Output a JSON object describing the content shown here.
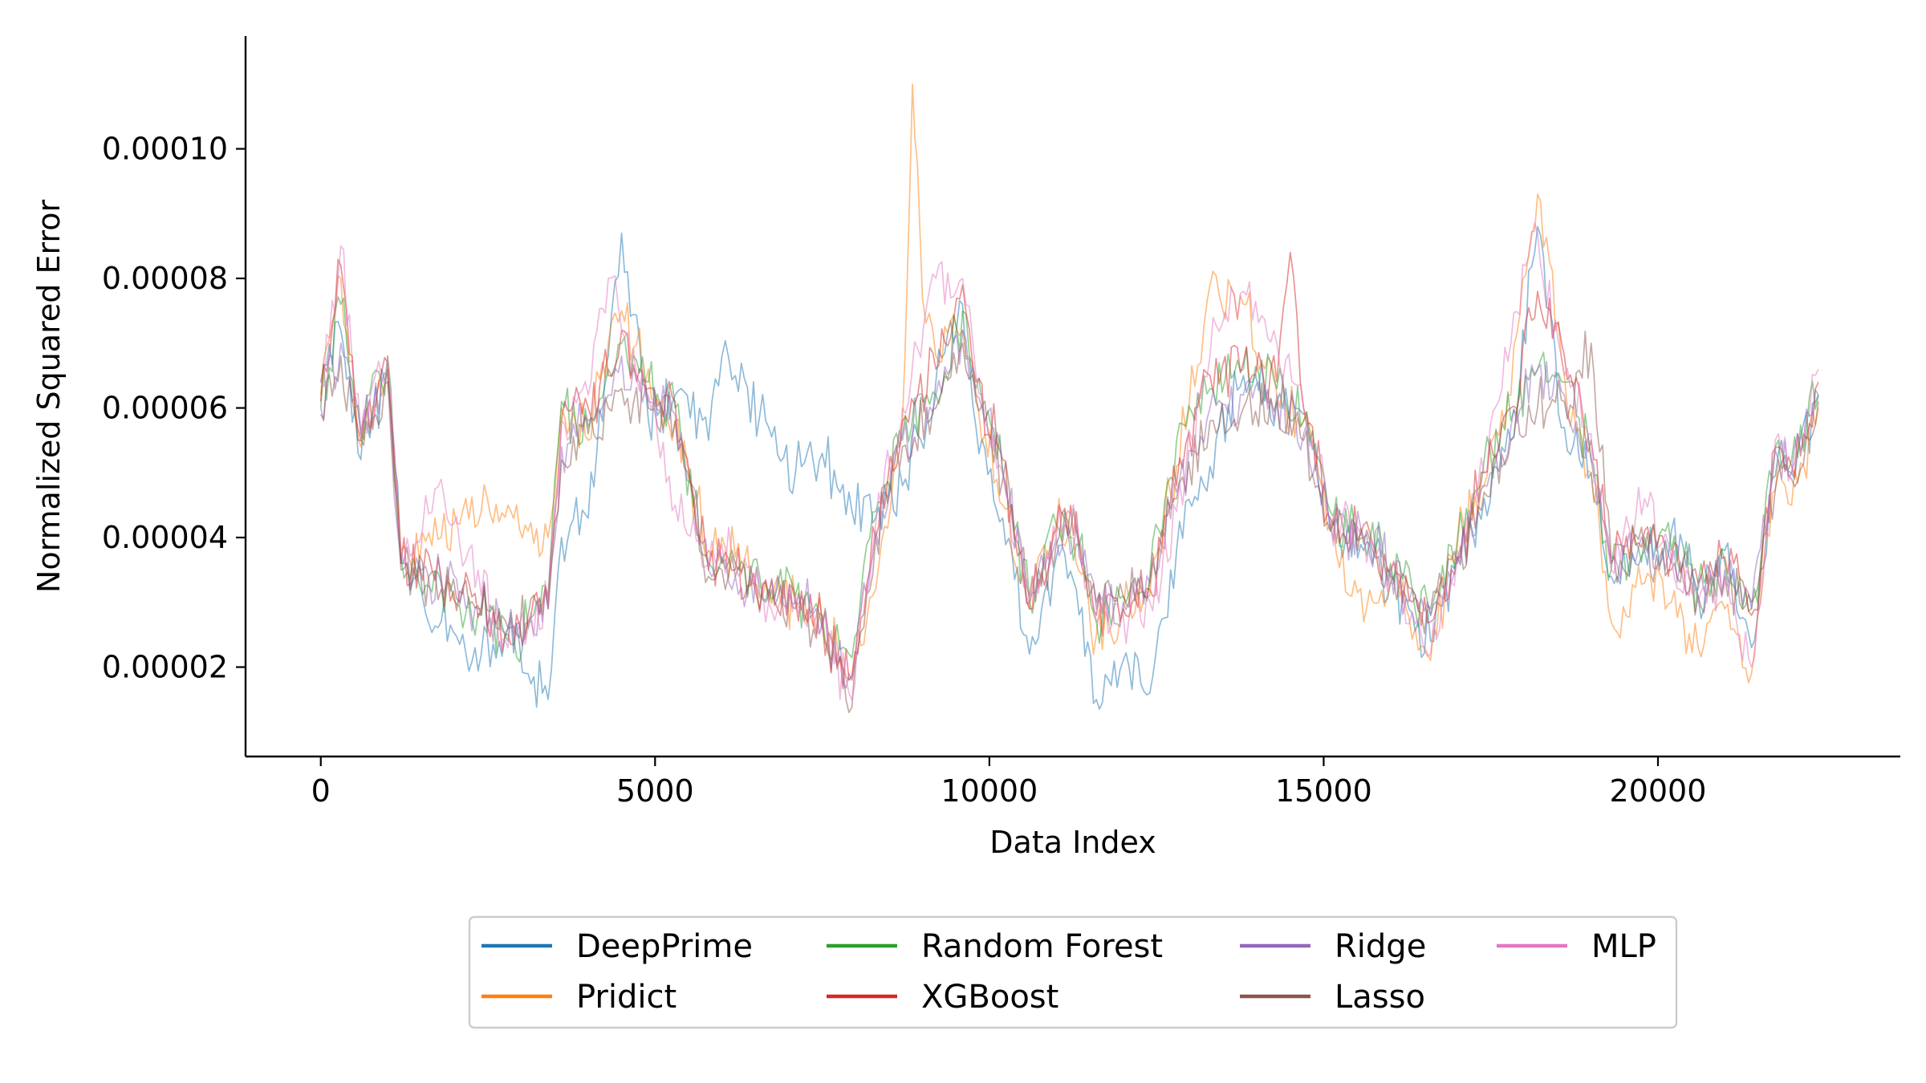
{
  "chart_data": {
    "type": "line",
    "title": "",
    "xlabel": "Data Index",
    "ylabel": "Normalized Squared Error",
    "xlim": [
      -1125,
      23625
    ],
    "ylim": [
      6.2e-06,
      0.0001174
    ],
    "xticks": [
      0,
      5000,
      10000,
      15000,
      20000
    ],
    "xtick_labels": [
      "0",
      "5000",
      "10000",
      "15000",
      "20000"
    ],
    "yticks": [
      2e-05,
      4e-05,
      6e-05,
      8e-05,
      0.0001
    ],
    "ytick_labels": [
      "0.00002",
      "0.00004",
      "0.00006",
      "0.00008",
      "0.00010"
    ],
    "grid": false,
    "legend_position": "bottom-center, below axes",
    "legend_columns": 4,
    "series_opacity": 0.5,
    "series": [
      {
        "name": "DeepPrime",
        "color": "#1f77b4",
        "x": [
          0,
          300,
          600,
          1000,
          1200,
          1800,
          2400,
          2800,
          3100,
          3400,
          3600,
          4000,
          4300,
          4500,
          4900,
          5300,
          5800,
          6000,
          6200,
          6700,
          7100,
          7500,
          7900,
          8300,
          8700,
          9200,
          9600,
          9800,
          10200,
          10600,
          11000,
          11300,
          11600,
          12000,
          12400,
          12800,
          13300,
          13800,
          14300,
          14700,
          15100,
          15600,
          16000,
          16600,
          17000,
          17400,
          17800,
          18200,
          18600,
          19000,
          19300,
          19800,
          20200,
          20600,
          21000,
          21400,
          21800,
          22000,
          22400
        ],
        "y": [
          6.4e-05,
          7.2e-05,
          5.2e-05,
          6.6e-05,
          3.6e-05,
          2.7e-05,
          2.2e-05,
          2.6e-05,
          1.9e-05,
          1.5e-05,
          4e-05,
          4.3e-05,
          6.8e-05,
          8.7e-05,
          5.8e-05,
          6.2e-05,
          5.5e-05,
          6.8e-05,
          6.5e-05,
          5.7e-05,
          5e-05,
          5.3e-05,
          4.7e-05,
          4.3e-05,
          4.8e-05,
          6.4e-05,
          7.6e-05,
          5.7e-05,
          4.3e-05,
          2.2e-05,
          3.7e-05,
          3.2e-05,
          1.5e-05,
          2.1e-05,
          1.6e-05,
          3.8e-05,
          5.1e-05,
          6.5e-05,
          6.1e-05,
          5.9e-05,
          4.1e-05,
          3.8e-05,
          3.3e-05,
          2.4e-05,
          3.7e-05,
          4.6e-05,
          5.5e-05,
          8.8e-05,
          5.7e-05,
          5e-05,
          3.4e-05,
          3.8e-05,
          4.1e-05,
          3.1e-05,
          3.8e-05,
          2.3e-05,
          5.3e-05,
          5e-05,
          6.2e-05
        ]
      },
      {
        "name": "Pridict",
        "color": "#ff7f0e",
        "x": [
          0,
          300,
          600,
          1000,
          1200,
          1800,
          2400,
          2800,
          3100,
          3400,
          3600,
          4000,
          4300,
          4500,
          4900,
          5300,
          5800,
          6000,
          6200,
          6700,
          7100,
          7500,
          7900,
          8300,
          8700,
          8850,
          9000,
          9200,
          9600,
          9800,
          10200,
          10600,
          11000,
          11300,
          11600,
          12000,
          12400,
          12800,
          13300,
          13800,
          14300,
          14700,
          15100,
          15600,
          16000,
          16600,
          17000,
          17400,
          17800,
          18200,
          18600,
          19000,
          19300,
          19800,
          20200,
          20600,
          21000,
          21400,
          21800,
          22000,
          22400
        ],
        "y": [
          6.2e-05,
          8e-05,
          5.4e-05,
          6.6e-05,
          3.8e-05,
          4e-05,
          4.4e-05,
          4.5e-05,
          4.1e-05,
          4e-05,
          6e-05,
          5.5e-05,
          7e-05,
          7.5e-05,
          6.6e-05,
          5.8e-05,
          3.8e-05,
          4e-05,
          3.7e-05,
          3.1e-05,
          3e-05,
          2.7e-05,
          1.8e-05,
          3.2e-05,
          5.8e-05,
          0.00011,
          7.7e-05,
          6.8e-05,
          7.2e-05,
          6.2e-05,
          4.5e-05,
          2.9e-05,
          4.2e-05,
          3.6e-05,
          2.5e-05,
          2.8e-05,
          3.1e-05,
          5.1e-05,
          7.9e-05,
          7.6e-05,
          6.2e-05,
          5.8e-05,
          4.2e-05,
          2.7e-05,
          3.3e-05,
          2.1e-05,
          4e-05,
          4.8e-05,
          6.2e-05,
          9.3e-05,
          6.5e-05,
          5e-05,
          2.7e-05,
          3.3e-05,
          3e-05,
          2.3e-05,
          2.9e-05,
          1.9e-05,
          5.2e-05,
          4.5e-05,
          6e-05
        ]
      },
      {
        "name": "Random Forest",
        "color": "#2ca02c",
        "x": [
          0,
          300,
          600,
          1000,
          1200,
          1800,
          2400,
          2800,
          3100,
          3400,
          3600,
          4000,
          4300,
          4500,
          4900,
          5300,
          5800,
          6000,
          6200,
          6700,
          7100,
          7500,
          7900,
          8300,
          8700,
          9200,
          9600,
          9800,
          10200,
          10600,
          11000,
          11300,
          11600,
          12000,
          12400,
          12800,
          13300,
          13800,
          14300,
          14700,
          15100,
          15600,
          16000,
          16600,
          17000,
          17400,
          17800,
          18200,
          18600,
          19000,
          19300,
          19800,
          20200,
          20600,
          21000,
          21400,
          21800,
          22000,
          22400
        ],
        "y": [
          6e-05,
          7.6e-05,
          5.6e-05,
          6.8e-05,
          3.7e-05,
          3.3e-05,
          2.8e-05,
          2.4e-05,
          2.6e-05,
          3.1e-05,
          6.1e-05,
          5.7e-05,
          6.6e-05,
          7e-05,
          6.4e-05,
          6e-05,
          3.6e-05,
          3.7e-05,
          3.6e-05,
          3.2e-05,
          3.1e-05,
          2.8e-05,
          2.2e-05,
          4.4e-05,
          5.6e-05,
          6.2e-05,
          7.5e-05,
          6.3e-05,
          5e-05,
          3e-05,
          4.2e-05,
          3.9e-05,
          2.7e-05,
          3.1e-05,
          3.4e-05,
          5.5e-05,
          6.3e-05,
          6.6e-05,
          6.3e-05,
          5.8e-05,
          4.4e-05,
          4e-05,
          3.6e-05,
          2.8e-05,
          3.9e-05,
          5.2e-05,
          5.8e-05,
          6.6e-05,
          6.4e-05,
          5.2e-05,
          3.5e-05,
          4e-05,
          3.8e-05,
          3.3e-05,
          3.6e-05,
          2.9e-05,
          5.5e-05,
          5.2e-05,
          6.2e-05
        ]
      },
      {
        "name": "XGBoost",
        "color": "#d62728",
        "x": [
          0,
          300,
          600,
          1000,
          1200,
          1800,
          2400,
          2800,
          3100,
          3400,
          3600,
          4000,
          4300,
          4500,
          4900,
          5300,
          5800,
          6000,
          6200,
          6700,
          7100,
          7500,
          7900,
          8300,
          8700,
          9200,
          9600,
          9800,
          10200,
          10600,
          11000,
          11300,
          11600,
          12000,
          12400,
          12800,
          13300,
          13800,
          14300,
          14500,
          14700,
          15100,
          15600,
          16000,
          16600,
          17000,
          17400,
          17800,
          18200,
          18600,
          19000,
          19300,
          19800,
          20200,
          20600,
          21000,
          21400,
          21800,
          22000,
          22400
        ],
        "y": [
          6.1e-05,
          8.2e-05,
          5.5e-05,
          6.7e-05,
          3.6e-05,
          3.4e-05,
          2.9e-05,
          2.5e-05,
          2.7e-05,
          3e-05,
          5.8e-05,
          6e-05,
          6.5e-05,
          7.2e-05,
          6.3e-05,
          6.1e-05,
          3.5e-05,
          3.6e-05,
          3.5e-05,
          3.1e-05,
          3e-05,
          2.7e-05,
          1.8e-05,
          4e-05,
          5.8e-05,
          6.6e-05,
          7.9e-05,
          6.4e-05,
          5.2e-05,
          2.9e-05,
          4.1e-05,
          4.4e-05,
          2.8e-05,
          2.9e-05,
          3.2e-05,
          4.8e-05,
          6.5e-05,
          6.7e-05,
          6.4e-05,
          8.4e-05,
          6e-05,
          4.3e-05,
          4.2e-05,
          3.5e-05,
          2.7e-05,
          3.7e-05,
          5e-05,
          6e-05,
          7.8e-05,
          6.8e-05,
          5.5e-05,
          3.6e-05,
          4.1e-05,
          3.7e-05,
          3.3e-05,
          3.7e-05,
          2.8e-05,
          5.4e-05,
          5.1e-05,
          6.4e-05
        ]
      },
      {
        "name": "Ridge",
        "color": "#9467bd",
        "x": [
          0,
          300,
          600,
          1000,
          1200,
          1800,
          2400,
          2800,
          3100,
          3400,
          3600,
          4000,
          4300,
          4500,
          4900,
          5300,
          5800,
          6000,
          6200,
          6700,
          7100,
          7500,
          7900,
          8300,
          8700,
          9200,
          9600,
          9800,
          10200,
          10600,
          11000,
          11300,
          11600,
          12000,
          12400,
          12800,
          13300,
          13800,
          14300,
          14700,
          15100,
          15600,
          16000,
          16600,
          17000,
          17400,
          17800,
          18200,
          18600,
          19000,
          19300,
          19800,
          20200,
          20600,
          21000,
          21400,
          21800,
          22000,
          22400
        ],
        "y": [
          6e-05,
          7e-05,
          5.6e-05,
          6.5e-05,
          3.6e-05,
          3.3e-05,
          2.9e-05,
          2.6e-05,
          2.7e-05,
          2.9e-05,
          5.4e-05,
          5.8e-05,
          6.2e-05,
          6.8e-05,
          6.1e-05,
          5.9e-05,
          3.5e-05,
          3.6e-05,
          3.4e-05,
          3.1e-05,
          3e-05,
          2.7e-05,
          1.9e-05,
          4.1e-05,
          5.5e-05,
          6.2e-05,
          7.2e-05,
          6.2e-05,
          5e-05,
          3e-05,
          4e-05,
          4.2e-05,
          2.9e-05,
          3e-05,
          3.3e-05,
          4.7e-05,
          6e-05,
          6.2e-05,
          6.2e-05,
          5.6e-05,
          4.2e-05,
          4e-05,
          3.5e-05,
          2.8e-05,
          3.7e-05,
          4.8e-05,
          5.7e-05,
          6.6e-05,
          6.2e-05,
          5.2e-05,
          3.6e-05,
          3.9e-05,
          3.6e-05,
          3.2e-05,
          3.5e-05,
          2.9e-05,
          5.2e-05,
          5e-05,
          6.2e-05
        ]
      },
      {
        "name": "Lasso",
        "color": "#8c564b",
        "x": [
          0,
          300,
          600,
          1000,
          1200,
          1800,
          2400,
          2800,
          3100,
          3400,
          3600,
          4000,
          4300,
          4500,
          4900,
          5300,
          5800,
          6000,
          6200,
          6700,
          7100,
          7500,
          7900,
          8300,
          8700,
          9200,
          9600,
          9800,
          10200,
          10600,
          11000,
          11300,
          11600,
          12000,
          12400,
          12800,
          13300,
          13800,
          14300,
          14700,
          15100,
          15600,
          16000,
          16600,
          17000,
          17400,
          17800,
          18200,
          18600,
          19000,
          19300,
          19800,
          20200,
          20600,
          21000,
          21400,
          21800,
          22000,
          22400
        ],
        "y": [
          5.9e-05,
          6.8e-05,
          5.5e-05,
          6.4e-05,
          3.5e-05,
          3.2e-05,
          2.8e-05,
          2.6e-05,
          2.8e-05,
          2.9e-05,
          5.2e-05,
          5.6e-05,
          6e-05,
          6.3e-05,
          6e-05,
          5.8e-05,
          3.4e-05,
          3.5e-05,
          3.4e-05,
          3e-05,
          2.9e-05,
          2.6e-05,
          1.3e-05,
          4e-05,
          5.4e-05,
          6e-05,
          7e-05,
          6.1e-05,
          4.9e-05,
          3.1e-05,
          3.9e-05,
          4.1e-05,
          3e-05,
          3.1e-05,
          3.3e-05,
          4.6e-05,
          5.8e-05,
          6e-05,
          6.1e-05,
          5.5e-05,
          4.1e-05,
          3.9e-05,
          3.4e-05,
          2.9e-05,
          3.6e-05,
          4.7e-05,
          5.5e-05,
          6e-05,
          6.1e-05,
          7e-05,
          3.7e-05,
          3.8e-05,
          3.5e-05,
          3.1e-05,
          3.4e-05,
          3e-05,
          5e-05,
          4.9e-05,
          6.1e-05
        ]
      },
      {
        "name": "MLP",
        "color": "#e377c2",
        "x": [
          0,
          300,
          600,
          1000,
          1200,
          1800,
          2400,
          2800,
          3100,
          3400,
          3600,
          4000,
          4300,
          4500,
          4900,
          5300,
          5800,
          6000,
          6200,
          6700,
          7100,
          7500,
          7900,
          8300,
          8700,
          9200,
          9600,
          9800,
          10200,
          10600,
          11000,
          11300,
          11600,
          12000,
          12400,
          12800,
          13300,
          13800,
          14300,
          14700,
          15100,
          15600,
          16000,
          16600,
          17000,
          17400,
          17800,
          18200,
          18600,
          19000,
          19300,
          19800,
          20200,
          20600,
          21000,
          21400,
          21800,
          22000,
          22400
        ],
        "y": [
          6.4e-05,
          8.5e-05,
          5.6e-05,
          6.8e-05,
          3.8e-05,
          4.9e-05,
          3.1e-05,
          2.3e-05,
          2.6e-05,
          3e-05,
          5.8e-05,
          6.2e-05,
          8e-05,
          7.2e-05,
          6.2e-05,
          4.5e-05,
          3.6e-05,
          3.9e-05,
          3.6e-05,
          3e-05,
          3.1e-05,
          2.6e-05,
          1.6e-05,
          4.2e-05,
          6e-05,
          8e-05,
          8e-05,
          6.5e-05,
          5e-05,
          3e-05,
          4e-05,
          4.2e-05,
          2.7e-05,
          2.8e-05,
          3e-05,
          4.4e-05,
          6.8e-05,
          7.8e-05,
          7e-05,
          6e-05,
          4.3e-05,
          4e-05,
          3.4e-05,
          2.2e-05,
          3.8e-05,
          5e-05,
          7e-05,
          8.7e-05,
          6.5e-05,
          5.6e-05,
          3.5e-05,
          4.6e-05,
          3.7e-05,
          3e-05,
          3.3e-05,
          2e-05,
          5.6e-05,
          5e-05,
          6.6e-05
        ]
      }
    ]
  }
}
